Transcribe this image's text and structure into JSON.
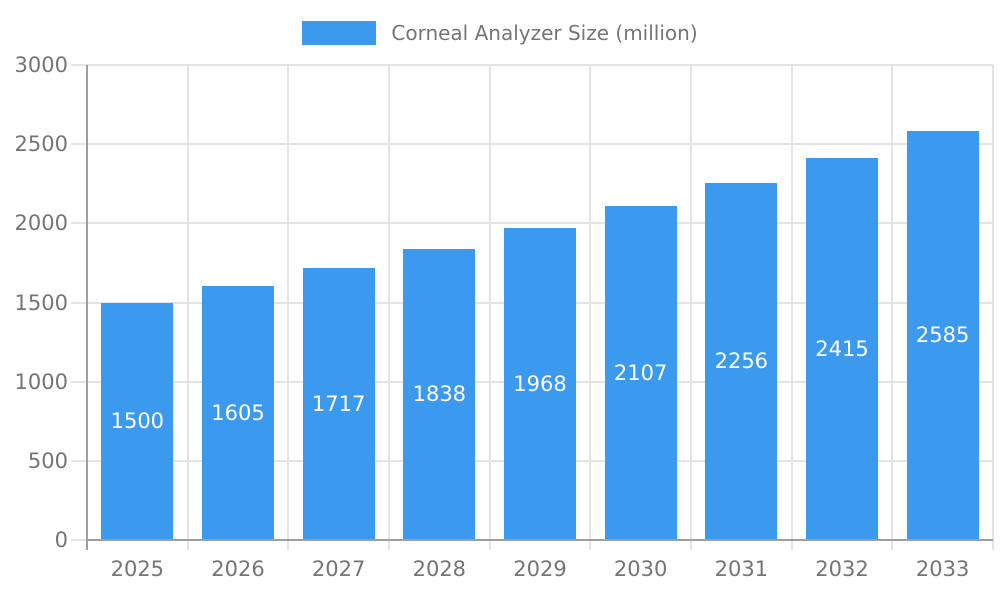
{
  "chart_data": {
    "type": "bar",
    "title": "Corneal Analyzer Size (million)",
    "categories": [
      "2025",
      "2026",
      "2027",
      "2028",
      "2029",
      "2030",
      "2031",
      "2032",
      "2033"
    ],
    "values": [
      1500,
      1605,
      1717,
      1838,
      1968,
      2107,
      2256,
      2415,
      2585
    ],
    "xlabel": "",
    "ylabel": "",
    "ylim": [
      0,
      3000
    ],
    "yticks": [
      0,
      500,
      1000,
      1500,
      2000,
      2500,
      3000
    ],
    "grid": true,
    "legend": {
      "position": "top",
      "label": "Corneal Analyzer Size (million)"
    },
    "colors": {
      "bar": "#3B99EE",
      "value_label": "#FFFFFF",
      "axis_text": "#757575",
      "axis_line": "#9E9E9E",
      "gridline": "#E4E4E4",
      "background": "#FFFFFF"
    }
  }
}
